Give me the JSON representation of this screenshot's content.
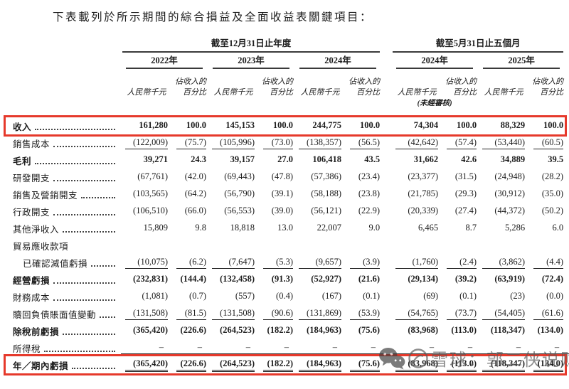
{
  "title": "下表載列於所示期間的綜合損益及全面收益表關鍵項目：",
  "table": {
    "groups": [
      {
        "label": "截至12月31日止年度"
      },
      {
        "label": "截至5月31日止五個月"
      }
    ],
    "years": [
      "2022年",
      "2023年",
      "2024年",
      "2024年",
      "2025年"
    ],
    "col_money": "人民幣千元",
    "col_pct_line1": "佔收入的",
    "col_pct_line2": "百分比",
    "unaudited": "(未經審核)",
    "rows": [
      {
        "label": "收入",
        "dots": true,
        "bold": true,
        "highlight": true,
        "values": [
          "161,280",
          "100.0",
          "145,153",
          "100.0",
          "244,775",
          "100.0",
          "74,304",
          "100.0",
          "88,329",
          "100.0"
        ]
      },
      {
        "label": "銷售成本",
        "dots": true,
        "underline": "single",
        "values": [
          "(122,009)",
          "(75.7)",
          "(105,996)",
          "(73.0)",
          "(138,357)",
          "(56.5)",
          "(42,642)",
          "(57.4)",
          "(53,440)",
          "(60.5)"
        ]
      },
      {
        "label": "毛利",
        "dots": true,
        "bold": true,
        "values": [
          "39,271",
          "24.3",
          "39,157",
          "27.0",
          "106,418",
          "43.5",
          "31,662",
          "42.6",
          "34,889",
          "39.5"
        ]
      },
      {
        "label": "研發開支",
        "dots": true,
        "values": [
          "(67,761)",
          "(42.0)",
          "(69,443)",
          "(47.8)",
          "(57,386)",
          "(23.4)",
          "(23,377)",
          "(31.5)",
          "(24,948)",
          "(28.2)"
        ]
      },
      {
        "label": "銷售及營銷開支",
        "dots": true,
        "values": [
          "(103,565)",
          "(64.2)",
          "(56,790)",
          "(39.1)",
          "(58,188)",
          "(23.8)",
          "(21,785)",
          "(29.3)",
          "(30,912)",
          "(35.0)"
        ]
      },
      {
        "label": "行政開支",
        "dots": true,
        "values": [
          "(106,510)",
          "(66.0)",
          "(56,553)",
          "(39.0)",
          "(56,121)",
          "(22.9)",
          "(20,339)",
          "(27.4)",
          "(44,372)",
          "(50.2)"
        ]
      },
      {
        "label": "其他淨收入",
        "dots": true,
        "values": [
          "15,809",
          "9.8",
          "18,818",
          "13.0",
          "22,007",
          "9.0",
          "6,465",
          "8.7",
          "5,286",
          "6.0"
        ]
      },
      {
        "label": "貿易應收款項",
        "dots": false,
        "values": null
      },
      {
        "label": "已確認減值虧損",
        "indent": true,
        "dots": true,
        "underline": "single",
        "values": [
          "(10,075)",
          "(6.2)",
          "(7,647)",
          "(5.3)",
          "(9,657)",
          "(3.9)",
          "(1,760)",
          "(2.4)",
          "(3,862)",
          "(4.4)"
        ]
      },
      {
        "label": "經營虧損",
        "dots": true,
        "bold": true,
        "values": [
          "(232,831)",
          "(144.4)",
          "(132,458)",
          "(91.3)",
          "(52,927)",
          "(21.6)",
          "(29,134)",
          "(39.2)",
          "(63,919)",
          "(72.4)"
        ]
      },
      {
        "label": "財務成本",
        "dots": true,
        "values": [
          "(1,081)",
          "(0.7)",
          "(557)",
          "(0.4)",
          "(167)",
          "(0.1)",
          "(69)",
          "(0.1)",
          "(23)",
          "(0.0)"
        ]
      },
      {
        "label": "贖回負債賬面值變動",
        "dots": true,
        "underline": "single",
        "values": [
          "(131,508)",
          "(81.5)",
          "(131,508)",
          "(90.6)",
          "(131,869)",
          "(53.9)",
          "(54,765)",
          "(73.7)",
          "(54,405)",
          "(61.6)"
        ]
      },
      {
        "label": "除稅前虧損",
        "dots": true,
        "bold": true,
        "values": [
          "(365,420)",
          "(226.6)",
          "(264,523)",
          "(182.2)",
          "(184,963)",
          "(75.6)",
          "(83,968)",
          "(113.0)",
          "(118,347)",
          "(134.0)"
        ]
      },
      {
        "label": "所得稅",
        "dots": true,
        "underline": "single",
        "values": [
          "–",
          "–",
          "–",
          "–",
          "–",
          "–",
          "–",
          "–",
          "–",
          "–"
        ]
      },
      {
        "label": "年／期內虧損",
        "dots": true,
        "bold": true,
        "highlight": true,
        "underline": "double",
        "values": [
          "(365,420)",
          "(226.6)",
          "(264,523)",
          "(182.2)",
          "(184,963)",
          "(75.6)",
          "(83,968)",
          "(113.0)",
          "(118,347)",
          "(134.0)"
        ]
      }
    ]
  },
  "watermark": {
    "text": "雪球：郭二侠说财",
    "icons": [
      "wechat-icon",
      "circled-logo-icon"
    ]
  },
  "colors": {
    "highlight_border": "#e6392b"
  }
}
